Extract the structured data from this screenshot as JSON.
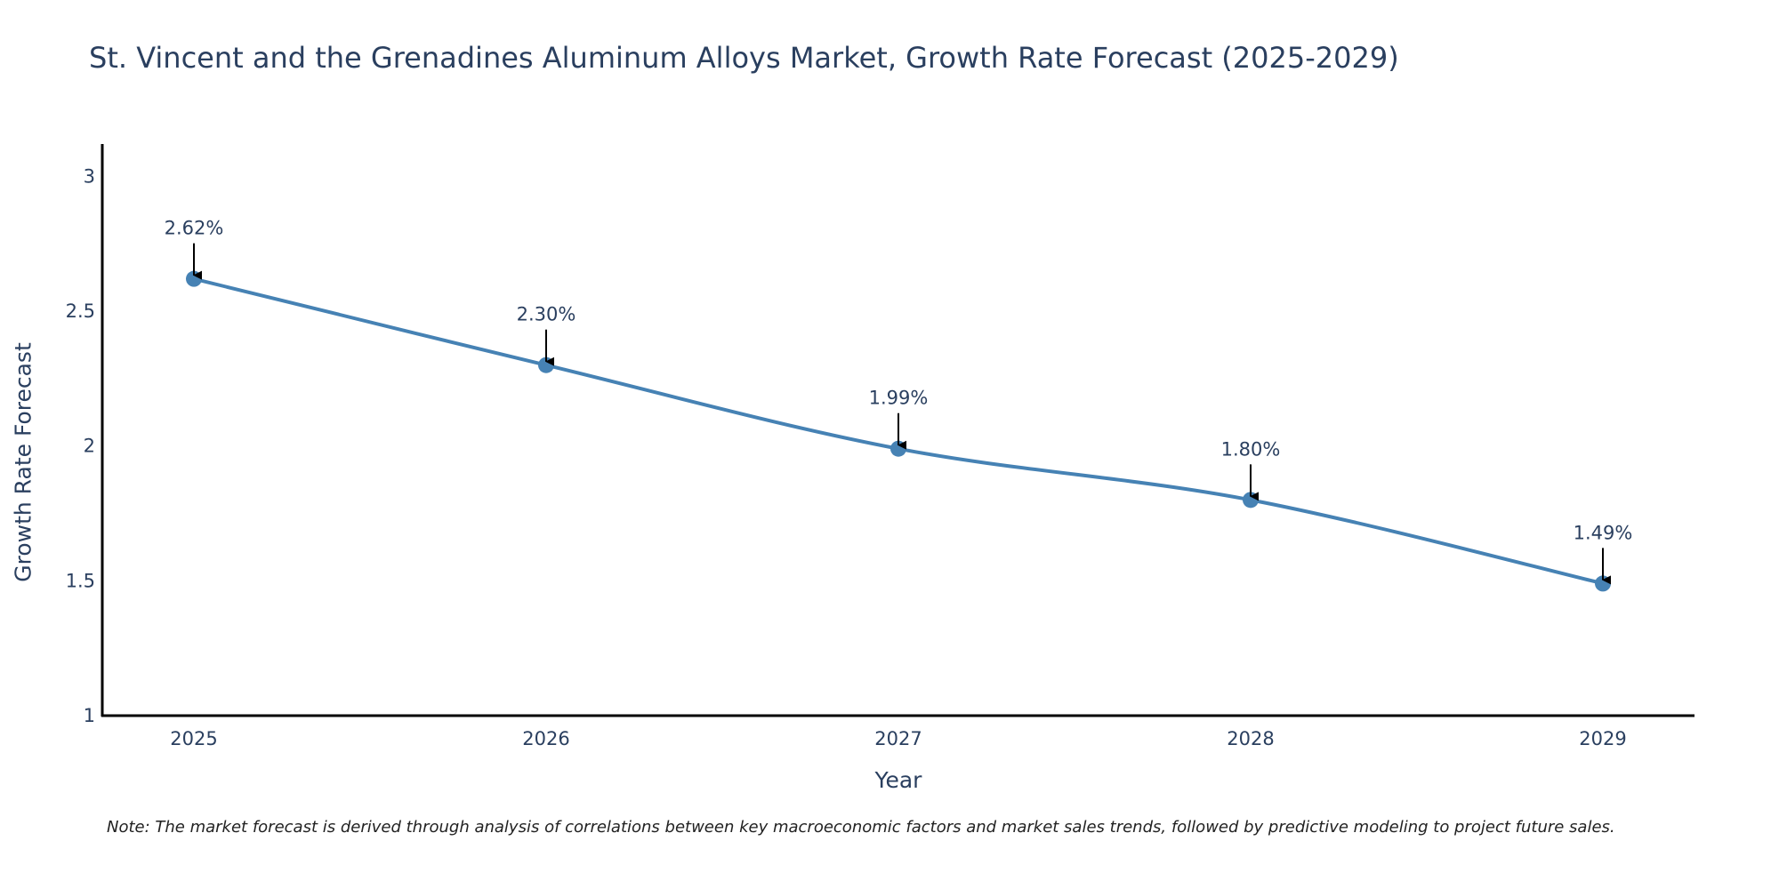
{
  "title": "St. Vincent and the Grenadines Aluminum Alloys Market, Growth Rate Forecast (2025-2029)",
  "note": "Note: The market forecast is derived through analysis of correlations between key macroeconomic factors and market sales trends, followed by predictive modeling to project future sales.",
  "colors": {
    "line": "#4682b4",
    "axis": "#000000",
    "text": "#2a3f5f"
  },
  "chart_data": {
    "type": "line",
    "title": "St. Vincent and the Grenadines Aluminum Alloys Market, Growth Rate Forecast (2025-2029)",
    "xlabel": "Year",
    "ylabel": "Growth Rate Forecast",
    "categories": [
      "2025",
      "2026",
      "2027",
      "2028",
      "2029"
    ],
    "series": [
      {
        "name": "Growth Rate Forecast",
        "values": [
          2.62,
          2.3,
          1.99,
          1.8,
          1.49
        ],
        "labels": [
          "2.62%",
          "2.30%",
          "1.99%",
          "1.80%",
          "1.49%"
        ]
      }
    ],
    "ylim": [
      1,
      3.12
    ],
    "yticks": [
      1,
      1.5,
      2,
      2.5,
      3
    ],
    "ytick_labels": [
      "1",
      "1.5",
      "2",
      "2.5",
      "3"
    ],
    "grid": false,
    "legend": "none"
  }
}
